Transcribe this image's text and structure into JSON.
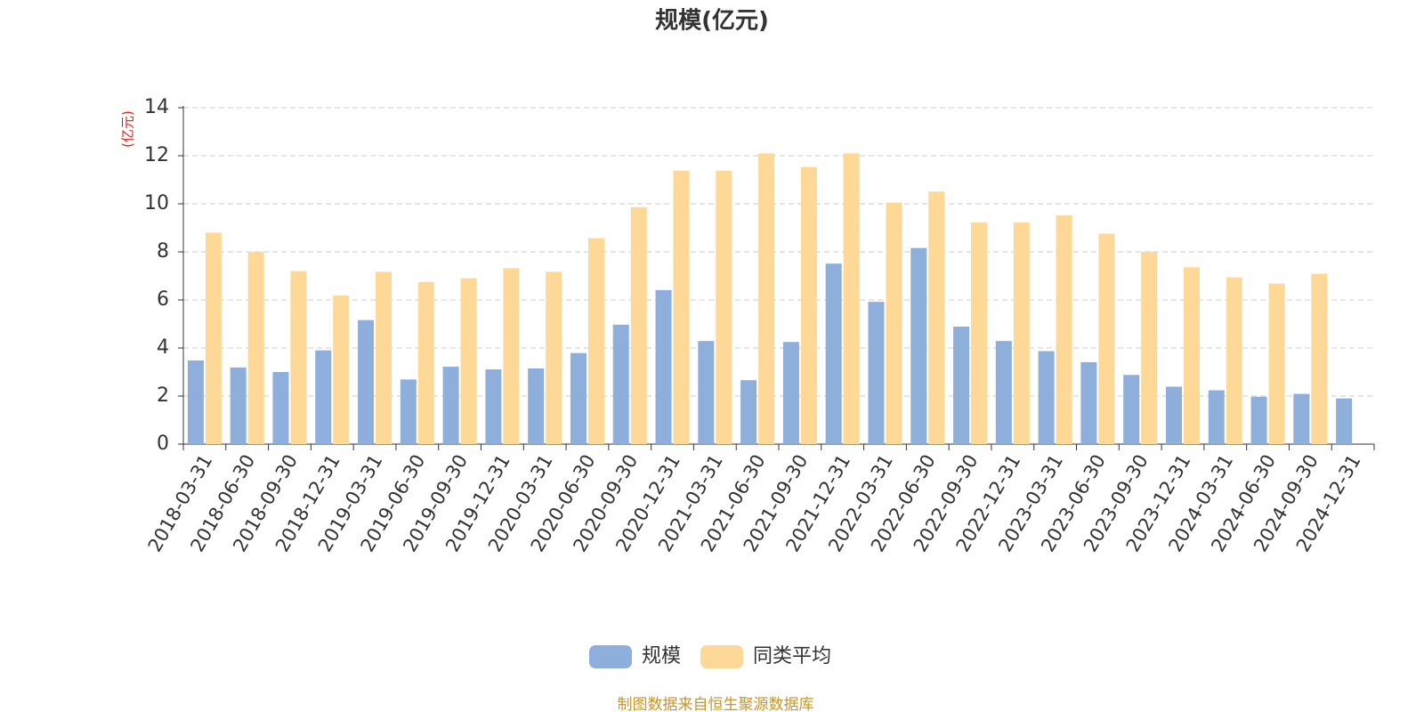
{
  "chart_data": {
    "type": "bar",
    "title": "规模(亿元)",
    "y_axis_label": "(亿元)",
    "categories": [
      "2018-03-31",
      "2018-06-30",
      "2018-09-30",
      "2018-12-31",
      "2019-03-31",
      "2019-06-30",
      "2019-09-30",
      "2019-12-31",
      "2020-03-31",
      "2020-06-30",
      "2020-09-30",
      "2020-12-31",
      "2021-03-31",
      "2021-06-30",
      "2021-09-30",
      "2021-12-31",
      "2022-03-31",
      "2022-06-30",
      "2022-09-30",
      "2022-12-31",
      "2023-03-31",
      "2023-06-30",
      "2023-09-30",
      "2023-12-31",
      "2024-03-31",
      "2024-06-30",
      "2024-09-30",
      "2024-12-31"
    ],
    "series": [
      {
        "name": "规模",
        "color": "#8eaedb",
        "values": [
          3.48,
          3.19,
          3.0,
          3.9,
          5.16,
          2.69,
          3.22,
          3.11,
          3.15,
          3.79,
          4.97,
          6.41,
          4.29,
          2.66,
          4.25,
          7.51,
          5.92,
          8.16,
          4.89,
          4.29,
          3.87,
          3.41,
          2.88,
          2.39,
          2.24,
          1.97,
          2.09,
          1.9
        ]
      },
      {
        "name": "同类平均",
        "color": "#fdd897",
        "values": [
          8.8,
          8.0,
          7.2,
          6.18,
          7.17,
          6.75,
          6.9,
          7.32,
          7.17,
          8.57,
          9.86,
          11.38,
          11.38,
          12.1,
          11.53,
          12.1,
          10.05,
          10.51,
          9.22,
          9.22,
          9.52,
          8.76,
          8.0,
          7.36,
          6.94,
          6.68,
          7.09,
          null
        ]
      }
    ],
    "ylim": [
      0,
      14
    ],
    "yticks": [
      0,
      2,
      4,
      6,
      8,
      10,
      12,
      14
    ],
    "grid": true,
    "legend": "bottom",
    "footer": "制图数据来自恒生聚源数据库"
  }
}
